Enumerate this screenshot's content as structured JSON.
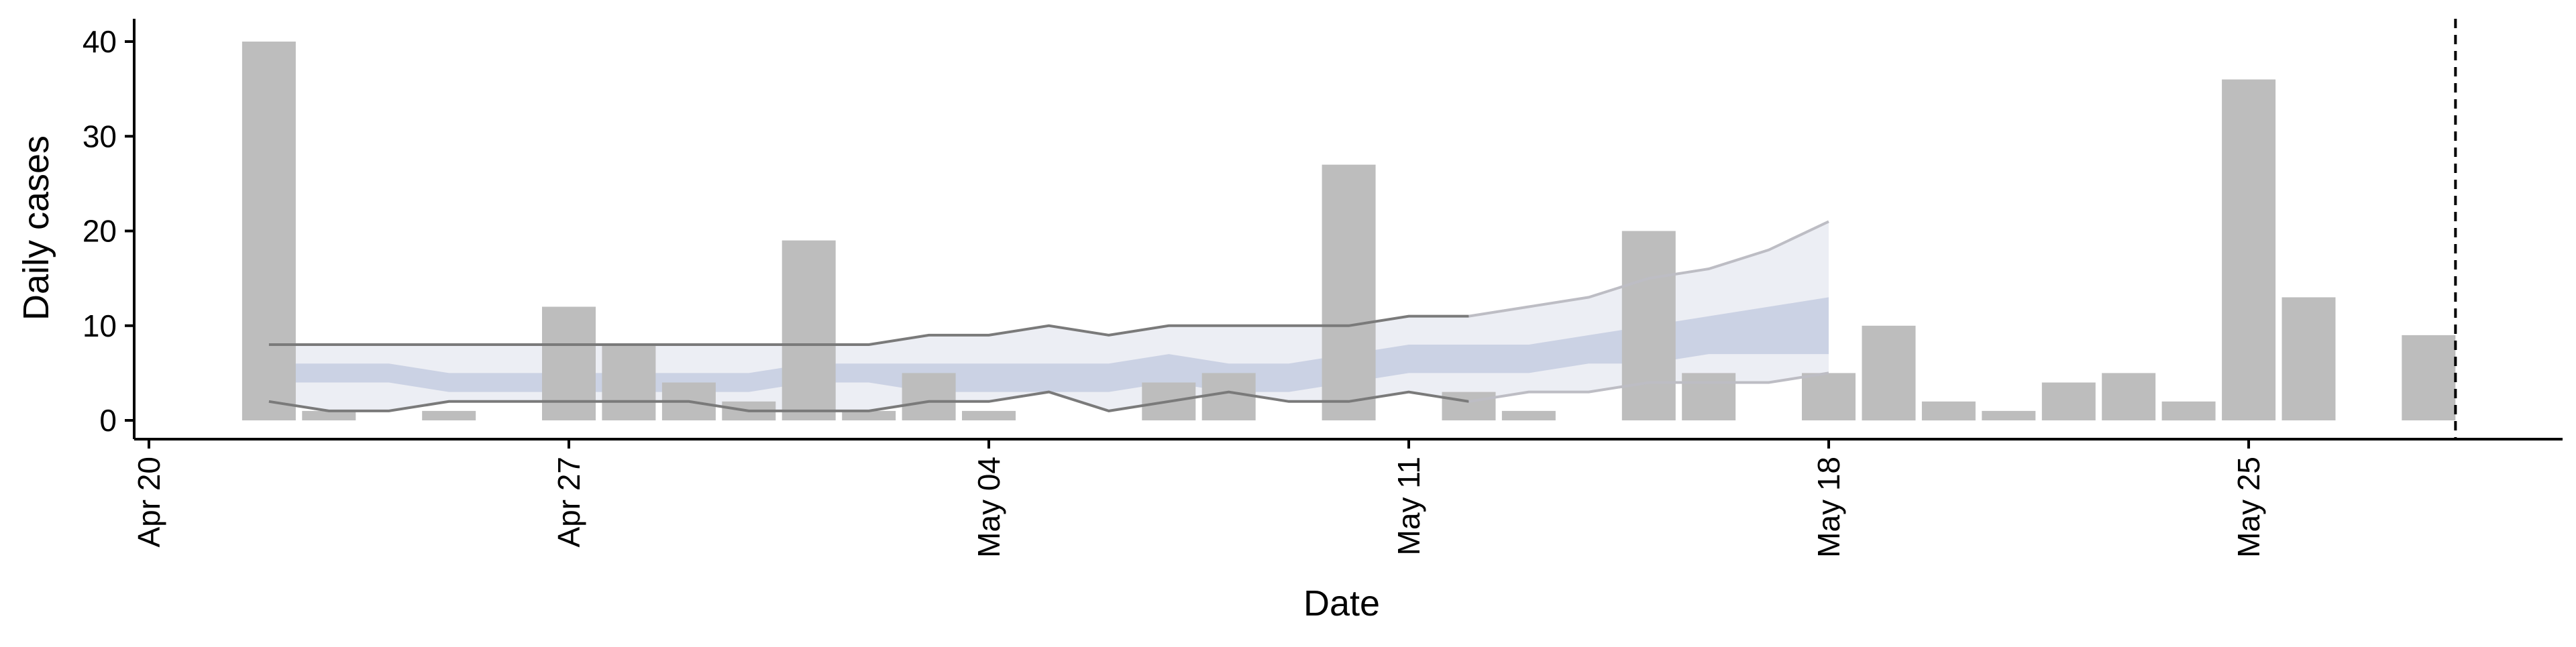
{
  "chart_data": {
    "type": "bar",
    "title": "",
    "xlabel": "Date",
    "ylabel": "Daily cases",
    "ylim": [
      -2,
      42
    ],
    "xlim": [
      "2020-04-20",
      "2020-05-31"
    ],
    "grid": false,
    "legend": "none",
    "colors": {
      "bars": "#bdbdbd",
      "outer_band": "#eceef4",
      "inner_band": "#c5cde0",
      "bound_lines": "#7a7a7a",
      "forecast_bound_lines": "#bdbdc4",
      "cutoff_line": "#000000"
    },
    "x_ticks": [
      {
        "date": "2020-04-20",
        "label": "Apr 20"
      },
      {
        "date": "2020-04-27",
        "label": "Apr 27"
      },
      {
        "date": "2020-05-04",
        "label": "May 04"
      },
      {
        "date": "2020-05-11",
        "label": "May 11"
      },
      {
        "date": "2020-05-18",
        "label": "May 18"
      },
      {
        "date": "2020-05-25",
        "label": "May 25"
      }
    ],
    "y_ticks": [
      0,
      10,
      20,
      30,
      40
    ],
    "bars": [
      {
        "date": "2020-04-22",
        "value": 40
      },
      {
        "date": "2020-04-23",
        "value": 1
      },
      {
        "date": "2020-04-25",
        "value": 1
      },
      {
        "date": "2020-04-27",
        "value": 12
      },
      {
        "date": "2020-04-28",
        "value": 8
      },
      {
        "date": "2020-04-29",
        "value": 4
      },
      {
        "date": "2020-04-30",
        "value": 2
      },
      {
        "date": "2020-05-01",
        "value": 19
      },
      {
        "date": "2020-05-02",
        "value": 1
      },
      {
        "date": "2020-05-03",
        "value": 5
      },
      {
        "date": "2020-05-04",
        "value": 1
      },
      {
        "date": "2020-05-07",
        "value": 4
      },
      {
        "date": "2020-05-08",
        "value": 5
      },
      {
        "date": "2020-05-10",
        "value": 27
      },
      {
        "date": "2020-05-12",
        "value": 3
      },
      {
        "date": "2020-05-13",
        "value": 1
      },
      {
        "date": "2020-05-15",
        "value": 20
      },
      {
        "date": "2020-05-16",
        "value": 5
      },
      {
        "date": "2020-05-18",
        "value": 5
      },
      {
        "date": "2020-05-19",
        "value": 10
      },
      {
        "date": "2020-05-20",
        "value": 2
      },
      {
        "date": "2020-05-21",
        "value": 1
      },
      {
        "date": "2020-05-22",
        "value": 4
      },
      {
        "date": "2020-05-23",
        "value": 5
      },
      {
        "date": "2020-05-24",
        "value": 2
      },
      {
        "date": "2020-05-25",
        "value": 36
      },
      {
        "date": "2020-05-26",
        "value": 13
      },
      {
        "date": "2020-05-28",
        "value": 9
      }
    ],
    "band_dates": [
      "2020-04-22",
      "2020-04-23",
      "2020-04-24",
      "2020-04-25",
      "2020-04-26",
      "2020-04-27",
      "2020-04-28",
      "2020-04-29",
      "2020-04-30",
      "2020-05-01",
      "2020-05-02",
      "2020-05-03",
      "2020-05-04",
      "2020-05-05",
      "2020-05-06",
      "2020-05-07",
      "2020-05-08",
      "2020-05-09",
      "2020-05-10",
      "2020-05-11",
      "2020-05-12",
      "2020-05-13",
      "2020-05-14",
      "2020-05-15",
      "2020-05-16",
      "2020-05-17",
      "2020-05-18"
    ],
    "outer_upper": [
      8,
      8,
      8,
      8,
      8,
      8,
      8,
      8,
      8,
      8,
      8,
      9,
      9,
      10,
      9,
      10,
      10,
      10,
      10,
      11,
      11,
      12,
      13,
      15,
      16,
      18,
      21
    ],
    "outer_lower": [
      2,
      1,
      1,
      2,
      2,
      2,
      2,
      2,
      1,
      1,
      1,
      2,
      2,
      3,
      1,
      2,
      3,
      2,
      2,
      3,
      2,
      3,
      3,
      4,
      4,
      4,
      5
    ],
    "inner_upper": [
      6,
      6,
      6,
      5,
      5,
      5,
      5,
      5,
      5,
      6,
      6,
      6,
      6,
      6,
      6,
      7,
      6,
      6,
      7,
      8,
      8,
      8,
      9,
      10,
      11,
      12,
      13
    ],
    "inner_lower": [
      4,
      4,
      4,
      3,
      3,
      3,
      3,
      3,
      3,
      4,
      4,
      3,
      3,
      3,
      3,
      4,
      3,
      3,
      4,
      5,
      5,
      5,
      6,
      6,
      7,
      7,
      7
    ],
    "cutoff_date": "2020-05-28"
  }
}
